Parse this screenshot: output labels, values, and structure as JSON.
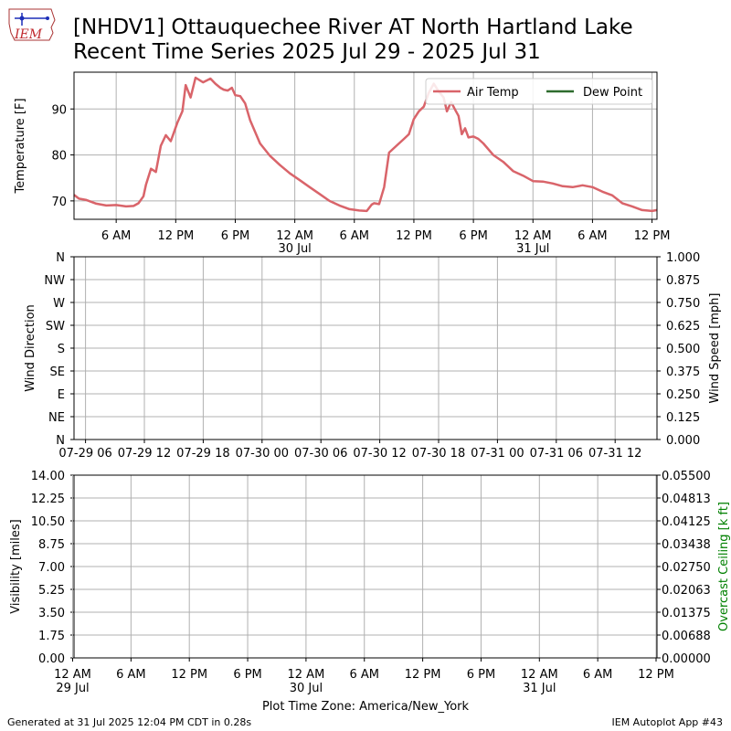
{
  "header": {
    "title_line1": "[NHDV1] Ottauquechee River  AT North Hartland Lake",
    "title_line2": "Recent Time Series 2025 Jul 29 - 2025 Jul 31",
    "logo_text": "IEM"
  },
  "footer": {
    "generated": "Generated at 31 Jul 2025 12:04 PM CDT in 0.28s",
    "app": "IEM Autoplot App #43",
    "timezone": "Plot Time Zone: America/New_York"
  },
  "colors": {
    "air_temp": "#d9646a",
    "dew_point": "#2e6b2e",
    "overcast": "#008000",
    "grid": "#b0b0b0"
  },
  "chart_data": [
    {
      "type": "line",
      "ylabel": "Temperature [F]",
      "ylim": [
        66,
        98
      ],
      "xlim": [
        "2025-07-29 01:45",
        "2025-07-31 12:30"
      ],
      "grid": true,
      "legend": {
        "placement": "top-right",
        "entries": [
          "Air Temp",
          "Dew Point"
        ]
      },
      "xticks": [
        {
          "t": "2025-07-29 06:00",
          "label": "6 AM"
        },
        {
          "t": "2025-07-29 12:00",
          "label": "12 PM"
        },
        {
          "t": "2025-07-29 18:00",
          "label": "6 PM"
        },
        {
          "t": "2025-07-30 00:00",
          "label": "12 AM",
          "sub": "30 Jul"
        },
        {
          "t": "2025-07-30 06:00",
          "label": "6 AM"
        },
        {
          "t": "2025-07-30 12:00",
          "label": "12 PM"
        },
        {
          "t": "2025-07-30 18:00",
          "label": "6 PM"
        },
        {
          "t": "2025-07-31 00:00",
          "label": "12 AM",
          "sub": "31 Jul"
        },
        {
          "t": "2025-07-31 06:00",
          "label": "6 AM"
        },
        {
          "t": "2025-07-31 12:00",
          "label": "12 PM"
        }
      ],
      "yticks": [
        70,
        80,
        90
      ],
      "series": [
        {
          "name": "Air Temp",
          "x": [
            "2025-07-29 01:45",
            "2025-07-29 02:15",
            "2025-07-29 03:00",
            "2025-07-29 04:00",
            "2025-07-29 05:00",
            "2025-07-29 06:00",
            "2025-07-29 07:00",
            "2025-07-29 07:45",
            "2025-07-29 08:15",
            "2025-07-29 08:45",
            "2025-07-29 09:00",
            "2025-07-29 09:30",
            "2025-07-29 10:00",
            "2025-07-29 10:30",
            "2025-07-29 11:00",
            "2025-07-29 11:30",
            "2025-07-29 11:50",
            "2025-07-29 12:10",
            "2025-07-29 12:40",
            "2025-07-29 13:00",
            "2025-07-29 13:30",
            "2025-07-29 14:00",
            "2025-07-29 14:45",
            "2025-07-29 15:30",
            "2025-07-29 16:00",
            "2025-07-29 16:30",
            "2025-07-29 16:50",
            "2025-07-29 17:15",
            "2025-07-29 17:40",
            "2025-07-29 18:00",
            "2025-07-29 18:30",
            "2025-07-29 19:00",
            "2025-07-29 19:30",
            "2025-07-29 20:30",
            "2025-07-29 21:30",
            "2025-07-29 22:30",
            "2025-07-29 23:30",
            "2025-07-30 00:30",
            "2025-07-30 01:30",
            "2025-07-30 02:30",
            "2025-07-30 03:30",
            "2025-07-30 04:30",
            "2025-07-30 05:30",
            "2025-07-30 06:30",
            "2025-07-30 07:15",
            "2025-07-30 07:45",
            "2025-07-30 08:00",
            "2025-07-30 08:30",
            "2025-07-30 09:00",
            "2025-07-30 09:30",
            "2025-07-30 10:15",
            "2025-07-30 11:00",
            "2025-07-30 11:30",
            "2025-07-30 12:00",
            "2025-07-30 12:30",
            "2025-07-30 13:00",
            "2025-07-30 13:30",
            "2025-07-30 14:00",
            "2025-07-30 14:30",
            "2025-07-30 15:00",
            "2025-07-30 15:20",
            "2025-07-30 15:45",
            "2025-07-30 16:10",
            "2025-07-30 16:30",
            "2025-07-30 16:50",
            "2025-07-30 17:10",
            "2025-07-30 17:30",
            "2025-07-30 18:00",
            "2025-07-30 18:30",
            "2025-07-30 19:00",
            "2025-07-30 20:00",
            "2025-07-30 21:00",
            "2025-07-30 22:00",
            "2025-07-30 23:00",
            "2025-07-31 00:00",
            "2025-07-31 01:00",
            "2025-07-31 02:00",
            "2025-07-31 03:00",
            "2025-07-31 04:00",
            "2025-07-31 05:00",
            "2025-07-31 06:00",
            "2025-07-31 07:00",
            "2025-07-31 08:00",
            "2025-07-31 09:00",
            "2025-07-31 10:00",
            "2025-07-31 11:00",
            "2025-07-31 12:00",
            "2025-07-31 12:30"
          ],
          "values": [
            71.3,
            70.5,
            70.2,
            69.4,
            69.0,
            69.1,
            68.8,
            68.9,
            69.5,
            71.0,
            73.5,
            77.0,
            76.3,
            82.0,
            84.3,
            83.0,
            85.0,
            87.0,
            89.5,
            95.2,
            92.5,
            96.8,
            95.8,
            96.6,
            95.5,
            94.6,
            94.2,
            94.0,
            94.6,
            93.0,
            92.8,
            91.2,
            87.5,
            82.5,
            79.8,
            77.8,
            76.0,
            74.5,
            73.0,
            71.5,
            70.0,
            69.0,
            68.2,
            67.9,
            67.8,
            69.2,
            69.5,
            69.3,
            73.0,
            80.5,
            82.0,
            83.5,
            84.5,
            87.8,
            89.5,
            90.5,
            93.5,
            95.5,
            93.8,
            92.5,
            89.5,
            91.5,
            89.8,
            88.5,
            84.5,
            85.8,
            83.8,
            84.0,
            83.5,
            82.5,
            80.0,
            78.5,
            76.5,
            75.5,
            74.3,
            74.2,
            73.8,
            73.2,
            73.0,
            73.4,
            73.0,
            72.0,
            71.2,
            69.5,
            68.8,
            68.0,
            67.8,
            68.0
          ]
        },
        {
          "name": "Dew Point",
          "x": [],
          "values": []
        }
      ]
    },
    {
      "type": "line",
      "ylabel": "Wind Direction",
      "ylabel_right": "Wind Speed [mph]",
      "grid": true,
      "yticks_left": [
        "N",
        "NE",
        "E",
        "SE",
        "S",
        "SW",
        "W",
        "NW",
        "N"
      ],
      "yticks_right": [
        "0.000",
        "0.125",
        "0.250",
        "0.375",
        "0.500",
        "0.625",
        "0.750",
        "0.875",
        "1.000"
      ],
      "xticks": [
        "07-29 06",
        "07-29 12",
        "07-29 18",
        "07-30 00",
        "07-30 06",
        "07-30 12",
        "07-30 18",
        "07-31 00",
        "07-31 06",
        "07-31 12"
      ],
      "series": []
    },
    {
      "type": "line",
      "ylabel": "Visibility [miles]",
      "ylabel_right": "Overcast Ceiling [k ft]",
      "ylim": [
        0,
        14
      ],
      "ylim_right": [
        0,
        0.055
      ],
      "grid": true,
      "yticks_left": [
        "0.00",
        "1.75",
        "3.50",
        "5.25",
        "7.00",
        "8.75",
        "10.50",
        "12.25",
        "14.00"
      ],
      "yticks_right": [
        "0.00000",
        "0.00688",
        "0.01375",
        "0.02063",
        "0.02750",
        "0.03438",
        "0.04125",
        "0.04813",
        "0.05500"
      ],
      "xticks": [
        {
          "label": "12 AM",
          "sub": "29 Jul"
        },
        {
          "label": "6 AM"
        },
        {
          "label": "12 PM"
        },
        {
          "label": "6 PM"
        },
        {
          "label": "12 AM",
          "sub": "30 Jul"
        },
        {
          "label": "6 AM"
        },
        {
          "label": "12 PM"
        },
        {
          "label": "6 PM"
        },
        {
          "label": "12 AM",
          "sub": "31 Jul"
        },
        {
          "label": "6 AM"
        },
        {
          "label": "12 PM"
        }
      ],
      "series": []
    }
  ]
}
